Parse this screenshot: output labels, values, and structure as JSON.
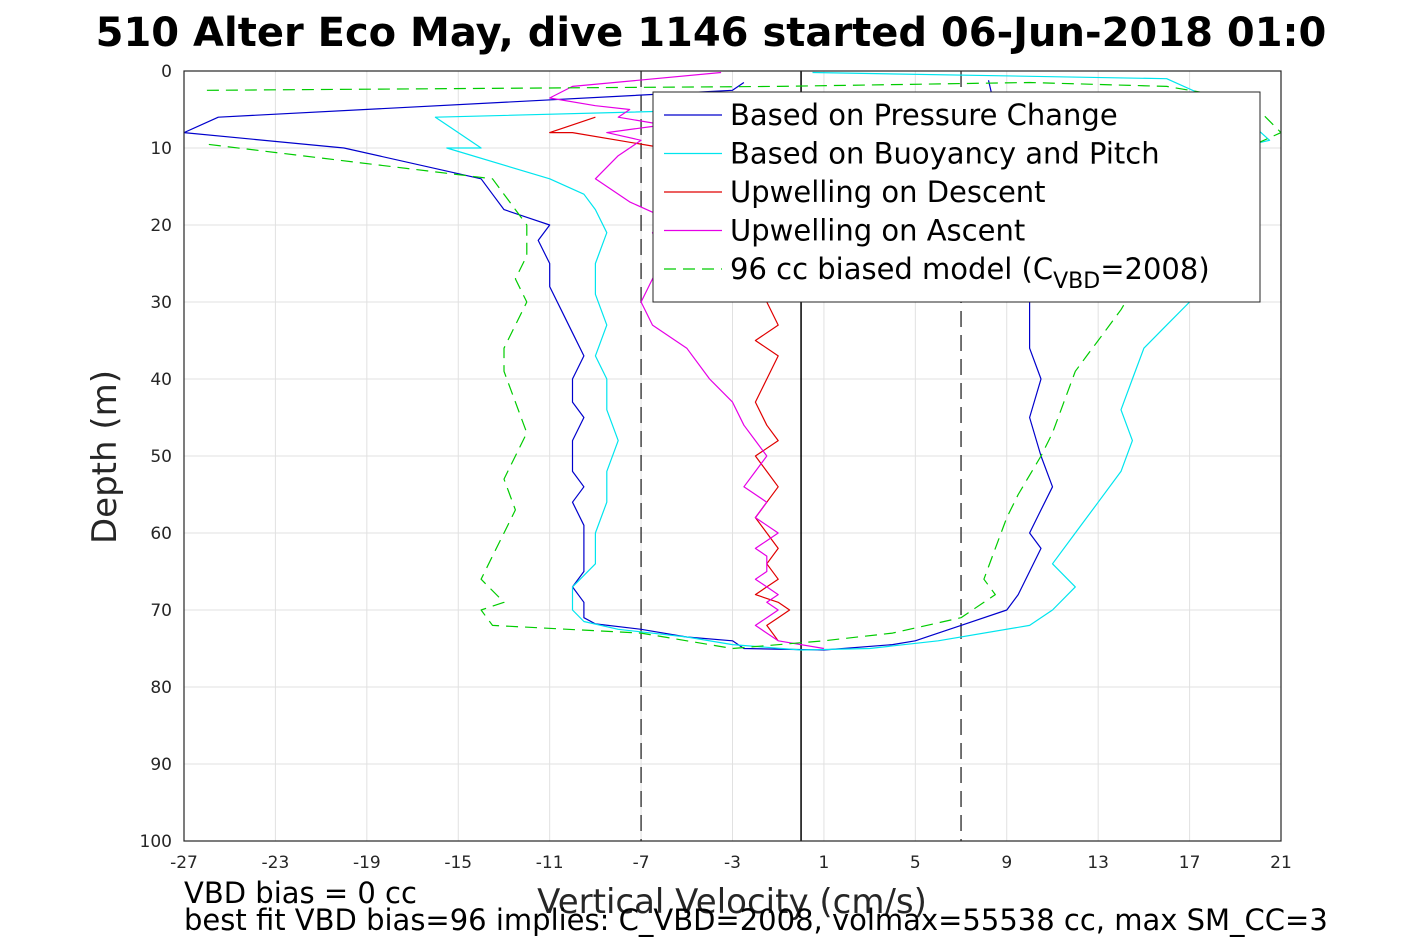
{
  "chart_data": {
    "type": "line",
    "title": "510 Alter Eco May, dive 1146 started 06-Jun-2018 01:0",
    "xlabel": "Vertical Velocity (cm/s)",
    "ylabel": "Depth (m)",
    "xlim": [
      -27,
      21
    ],
    "ylim": [
      0,
      100
    ],
    "y_reversed": true,
    "grid": true,
    "xticks": [
      -27,
      -23,
      -19,
      -15,
      -11,
      -7,
      -3,
      1,
      5,
      9,
      13,
      17,
      21
    ],
    "yticks": [
      0,
      10,
      20,
      30,
      40,
      50,
      60,
      70,
      80,
      90,
      100
    ],
    "legend_position": "top-right",
    "legend": [
      {
        "label": "Based on Pressure Change",
        "color": "#0000cc",
        "style": "solid"
      },
      {
        "label": "Based on Buoyancy and Pitch",
        "color": "#00e5ee",
        "style": "solid"
      },
      {
        "label": "Upwelling on Descent",
        "color": "#e00000",
        "style": "solid"
      },
      {
        "label": "Upwelling on Ascent",
        "color": "#e600e6",
        "style": "solid"
      },
      {
        "label_pre": "96 cc biased model (C",
        "label_sub": "VBD",
        "label_post": "=2008)",
        "color": "#00cc00",
        "style": "dashed"
      }
    ],
    "reference_lines": [
      {
        "x": -7,
        "style": "dashed",
        "color": "#444444"
      },
      {
        "x": 0,
        "style": "solid",
        "color": "#000000"
      },
      {
        "x": 7,
        "style": "dashed",
        "color": "#444444"
      }
    ],
    "series": [
      {
        "name": "Based on Pressure Change",
        "color": "#0000cc",
        "dash": false,
        "x": [
          -2.5,
          -3,
          -25.5,
          -27,
          -20,
          -14,
          -13.5,
          -13,
          -12,
          -11,
          -11.5,
          -11,
          -11,
          -10.5,
          -10,
          -9.5,
          -10,
          -10,
          -9.5,
          -10,
          -10,
          -9.5,
          -10,
          -9.5,
          -9.5,
          -9.5,
          -10,
          -9.5,
          -9.5,
          -9,
          -7,
          -5,
          -3,
          -2.5,
          1,
          4,
          5,
          7,
          9,
          9.5,
          10,
          10.5,
          10,
          10.5,
          11,
          10.5,
          10,
          10.5,
          10,
          10,
          10,
          10.5,
          10,
          9.5,
          8.5,
          8.2
        ],
        "y": [
          1.5,
          2.5,
          6,
          8,
          10,
          14,
          16,
          18,
          19,
          20,
          22,
          25,
          28,
          31,
          34,
          37,
          40,
          43,
          45,
          48,
          52,
          54,
          56,
          59,
          62,
          65,
          67,
          69,
          71,
          71.8,
          72.5,
          73.5,
          74,
          75,
          75.2,
          74.5,
          74,
          72,
          70,
          68,
          65,
          62,
          60,
          57,
          54,
          50,
          45,
          40,
          36,
          33,
          30,
          27,
          24,
          20,
          5,
          1.2
        ]
      },
      {
        "name": "Based on Buoyancy and Pitch",
        "color": "#00e5ee",
        "dash": false,
        "x": [
          -3,
          -16,
          -14,
          -15.5,
          -11,
          -9.5,
          -9,
          -8.5,
          -9,
          -9,
          -8.5,
          -9,
          -8.5,
          -8.5,
          -8,
          -8.5,
          -8.5,
          -9,
          -9,
          -10,
          -10,
          -9.5,
          -8,
          -5,
          -3,
          0,
          3,
          6,
          10,
          11,
          12,
          11,
          12,
          13,
          14,
          14.5,
          14,
          14.5,
          15,
          16,
          17,
          17.5,
          17,
          18,
          19,
          20,
          19,
          20.5,
          19,
          16,
          0.5
        ],
        "y": [
          5,
          6,
          10,
          10,
          14,
          16,
          18,
          21,
          25,
          29,
          33,
          37,
          40,
          44,
          48,
          52,
          56,
          60,
          64,
          67,
          70,
          71.5,
          72.5,
          73.5,
          74.5,
          75.2,
          75,
          74,
          72,
          70,
          67,
          64,
          60,
          56,
          52,
          48,
          44,
          40,
          36,
          33,
          30,
          27,
          24,
          20,
          16,
          13,
          10,
          9,
          5,
          1,
          0.2
        ]
      },
      {
        "name": "Upwelling on Descent",
        "color": "#e00000",
        "dash": false,
        "x": [
          -9,
          -11,
          -10,
          -8,
          -6,
          -4,
          -3,
          -2,
          -1.5,
          -2,
          -1.5,
          -1,
          -2,
          -1,
          -1.5,
          -2,
          -1.5,
          -1,
          -2,
          -1.5,
          -1,
          -1.5,
          -2,
          -1.5,
          -1,
          -1.5,
          -1,
          -1.5,
          -2,
          -1,
          -0.5,
          -1,
          -1.5,
          -1
        ],
        "y": [
          6,
          8,
          8,
          9,
          10,
          11,
          14,
          18,
          22,
          26,
          30,
          33,
          35,
          37,
          40,
          43,
          46,
          48,
          50,
          52,
          54,
          56,
          58,
          60,
          62,
          64,
          66,
          67,
          68,
          69,
          70,
          71,
          72,
          74
        ]
      },
      {
        "name": "Upwelling on Ascent",
        "color": "#e600e6",
        "dash": false,
        "x": [
          -3.5,
          -10,
          -11,
          -9,
          -7.5,
          -8,
          -6,
          -8.5,
          -7,
          -8,
          -9,
          -7.5,
          -6,
          -6.5,
          -6,
          -6.5,
          -7,
          -6.5,
          -5,
          -4,
          -3,
          -2.5,
          -2,
          -1.5,
          -2,
          -2.5,
          -1.5,
          -2,
          -1,
          -1.5,
          -2,
          -1.5,
          -1.5,
          -1.5,
          -2,
          -1.5,
          -1,
          -1.5,
          -1,
          -1.5,
          -2,
          -1.5,
          -1,
          1
        ],
        "y": [
          0.2,
          2,
          3.5,
          4.5,
          5,
          6,
          7,
          8,
          9,
          11,
          14,
          17,
          19,
          21,
          24,
          27,
          30,
          33,
          36,
          40,
          43,
          46,
          48,
          50,
          52,
          54,
          56,
          58,
          60,
          61,
          62,
          63,
          64,
          65,
          66,
          67,
          68,
          69,
          70,
          71,
          72,
          73,
          74,
          75
        ]
      },
      {
        "name": "96 cc biased model (CVBD=2008)",
        "color": "#00cc00",
        "dash": true,
        "x": [
          -26,
          -1,
          10,
          16,
          18,
          20,
          21,
          18,
          17,
          16,
          15,
          14,
          13,
          12.5,
          12,
          11.5,
          11,
          10.5,
          9.5,
          9,
          8.5,
          8,
          8.5,
          7,
          4,
          1,
          -3,
          -7,
          -13.5,
          -14,
          -13,
          -14,
          -13.5,
          -13,
          -12.5,
          -13,
          -12.5,
          -12,
          -12.5,
          -13,
          -13,
          -12.5,
          -12,
          -12.5,
          -12,
          -12,
          -13.5,
          -26
        ],
        "y": [
          2.5,
          2,
          1.5,
          2,
          3,
          5,
          8,
          12,
          16,
          20,
          26,
          31,
          35,
          37,
          39,
          43,
          47,
          50,
          55,
          58,
          62,
          66,
          68,
          71,
          73,
          74,
          75,
          73,
          72,
          70,
          69,
          66,
          63,
          60,
          57,
          53,
          50,
          47,
          43,
          39,
          36,
          33,
          30,
          27,
          24,
          20,
          14,
          9.5
        ]
      }
    ],
    "annotations": [
      "VBD bias = 0 cc",
      "best fit VBD bias=96 implies: C_VBD=2008, volmax=55538 cc, max SM_CC=3"
    ]
  }
}
